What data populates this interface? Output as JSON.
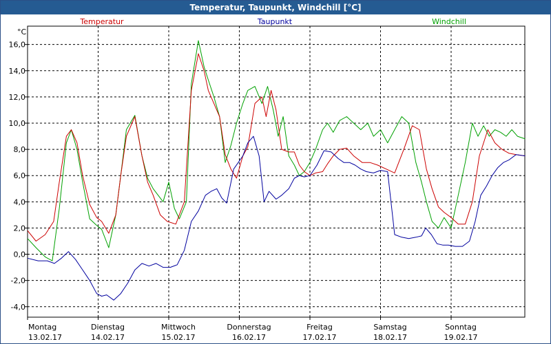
{
  "window": {
    "title": "Temperatur, Taupunkt, Windchill [°C]"
  },
  "chart_data": {
    "type": "line",
    "title": "Temperatur, Taupunkt, Windchill [°C]",
    "ylabel": "°C",
    "ylim": [
      -4.8,
      17.4
    ],
    "grid": true,
    "legend_placement": "top",
    "yticks": [
      16,
      14,
      12,
      10,
      8,
      6,
      4,
      2,
      0,
      -2,
      -4
    ],
    "ytick_labels": [
      "16,0",
      "14,0",
      "12,0",
      "10,0",
      "8,0",
      "6,0",
      "4,0",
      "2,0",
      "0,0",
      "-2,0",
      "-4,0"
    ],
    "xlim": [
      0,
      7.05
    ],
    "xticks": [
      0,
      1,
      2,
      3,
      4,
      5,
      6
    ],
    "day_labels": [
      "Montag",
      "Dienstag",
      "Mittwoch",
      "Donnerstag",
      "Freitag",
      "Samstag",
      "Sonntag"
    ],
    "date_labels": [
      "13.02.17",
      "14.02.17",
      "15.02.17",
      "16.02.17",
      "17.02.17",
      "18.02.17",
      "19.02.17"
    ],
    "series": [
      {
        "name": "Temperatur",
        "color": "#cc0000",
        "x": [
          0,
          0.12,
          0.25,
          0.37,
          0.45,
          0.55,
          0.62,
          0.7,
          0.78,
          0.88,
          0.98,
          1.05,
          1.15,
          1.25,
          1.32,
          1.4,
          1.52,
          1.62,
          1.7,
          1.78,
          1.88,
          1.98,
          2.1,
          2.22,
          2.32,
          2.42,
          2.5,
          2.56,
          2.64,
          2.72,
          2.8,
          2.88,
          2.96,
          3.05,
          3.12,
          3.22,
          3.32,
          3.38,
          3.45,
          3.52,
          3.6,
          3.7,
          3.78,
          3.85,
          3.92,
          4.0,
          4.08,
          4.18,
          4.25,
          4.33,
          4.42,
          4.52,
          4.62,
          4.74,
          4.85,
          4.96,
          5.08,
          5.2,
          5.33,
          5.45,
          5.55,
          5.65,
          5.73,
          5.82,
          5.9,
          6.0,
          6.1,
          6.2,
          6.3,
          6.4,
          6.52,
          6.62,
          6.72,
          6.82,
          6.92,
          7.05
        ],
        "values": [
          1.8,
          1.0,
          1.5,
          2.5,
          5.5,
          9.0,
          9.5,
          8.5,
          6.0,
          3.8,
          2.8,
          2.5,
          1.6,
          3.0,
          6.0,
          9.0,
          10.5,
          7.5,
          5.5,
          4.5,
          3.0,
          2.5,
          2.3,
          4.0,
          12.5,
          15.3,
          14.0,
          12.5,
          11.5,
          10.5,
          7.6,
          6.5,
          5.8,
          7.5,
          8.2,
          11.5,
          12.0,
          10.5,
          12.5,
          11.0,
          8.0,
          7.8,
          7.8,
          6.8,
          6.3,
          6.0,
          6.2,
          6.3,
          6.9,
          7.5,
          8.0,
          8.1,
          7.5,
          7.0,
          7.0,
          6.8,
          6.5,
          6.2,
          8.0,
          9.8,
          9.5,
          6.5,
          5.0,
          3.6,
          3.2,
          2.8,
          2.3,
          2.3,
          4.0,
          7.5,
          9.5,
          8.5,
          8.0,
          7.7,
          7.6,
          7.5
        ]
      },
      {
        "name": "Taupunkt",
        "color": "#00009e",
        "x": [
          0,
          0.15,
          0.28,
          0.38,
          0.48,
          0.58,
          0.68,
          0.78,
          0.88,
          0.98,
          1.05,
          1.12,
          1.22,
          1.32,
          1.42,
          1.52,
          1.62,
          1.72,
          1.82,
          1.92,
          2.02,
          2.12,
          2.22,
          2.32,
          2.42,
          2.52,
          2.6,
          2.68,
          2.75,
          2.82,
          2.92,
          3.05,
          3.12,
          3.2,
          3.28,
          3.35,
          3.42,
          3.52,
          3.6,
          3.7,
          3.78,
          3.85,
          3.92,
          4.0,
          4.1,
          4.2,
          4.3,
          4.4,
          4.48,
          4.56,
          4.64,
          4.72,
          4.8,
          4.9,
          5.0,
          5.1,
          5.2,
          5.3,
          5.4,
          5.5,
          5.58,
          5.64,
          5.72,
          5.8,
          5.88,
          5.96,
          6.06,
          6.16,
          6.26,
          6.34,
          6.42,
          6.5,
          6.58,
          6.66,
          6.74,
          6.82,
          6.92,
          7.05
        ],
        "values": [
          -0.3,
          -0.5,
          -0.5,
          -0.7,
          -0.3,
          0.2,
          -0.4,
          -1.2,
          -2.0,
          -3.0,
          -3.2,
          -3.1,
          -3.5,
          -3.0,
          -2.2,
          -1.2,
          -0.7,
          -0.9,
          -0.7,
          -1.0,
          -1.0,
          -0.8,
          0.3,
          2.5,
          3.3,
          4.5,
          4.8,
          5.0,
          4.3,
          3.9,
          6.5,
          7.5,
          8.5,
          9.0,
          7.5,
          4.0,
          4.8,
          4.2,
          4.5,
          5.0,
          5.8,
          6.0,
          5.9,
          6.0,
          6.8,
          7.9,
          7.8,
          7.3,
          7.0,
          7.0,
          6.8,
          6.5,
          6.3,
          6.2,
          6.4,
          6.3,
          1.5,
          1.3,
          1.2,
          1.3,
          1.4,
          2.0,
          1.5,
          0.8,
          0.7,
          0.7,
          0.6,
          0.6,
          1.0,
          2.5,
          4.5,
          5.2,
          6.0,
          6.6,
          7.0,
          7.2,
          7.6,
          7.5
        ]
      },
      {
        "name": "Windchill",
        "color": "#00a000",
        "x": [
          0,
          0.12,
          0.25,
          0.35,
          0.45,
          0.55,
          0.62,
          0.7,
          0.78,
          0.88,
          0.98,
          1.05,
          1.15,
          1.25,
          1.32,
          1.4,
          1.52,
          1.62,
          1.7,
          1.78,
          1.85,
          1.92,
          2.0,
          2.08,
          2.15,
          2.25,
          2.32,
          2.42,
          2.5,
          2.56,
          2.64,
          2.72,
          2.8,
          2.88,
          2.96,
          3.05,
          3.12,
          3.22,
          3.32,
          3.4,
          3.48,
          3.55,
          3.62,
          3.7,
          3.78,
          3.85,
          3.92,
          4.0,
          4.08,
          4.18,
          4.25,
          4.33,
          4.42,
          4.52,
          4.62,
          4.72,
          4.82,
          4.9,
          5.0,
          5.1,
          5.2,
          5.3,
          5.4,
          5.5,
          5.58,
          5.65,
          5.73,
          5.82,
          5.9,
          6.0,
          6.1,
          6.2,
          6.3,
          6.38,
          6.46,
          6.54,
          6.62,
          6.7,
          6.78,
          6.86,
          6.94,
          7.05
        ],
        "values": [
          1.2,
          0.5,
          -0.2,
          -0.5,
          3.5,
          8.5,
          9.5,
          8.0,
          5.5,
          2.7,
          2.2,
          1.9,
          0.5,
          3.0,
          6.0,
          9.5,
          10.6,
          7.5,
          5.8,
          5.0,
          4.5,
          4.0,
          5.5,
          3.5,
          2.7,
          4.0,
          13.0,
          16.3,
          14.3,
          13.3,
          12.0,
          10.5,
          7.0,
          8.3,
          10.0,
          11.5,
          12.5,
          12.8,
          11.5,
          12.8,
          11.0,
          9.0,
          10.5,
          7.5,
          6.8,
          6.0,
          6.3,
          7.0,
          8.0,
          9.5,
          10.0,
          9.3,
          10.2,
          10.5,
          10.0,
          9.5,
          10.0,
          9.0,
          9.5,
          8.5,
          9.5,
          10.5,
          10.0,
          7.0,
          5.5,
          4.0,
          2.5,
          2.0,
          2.8,
          2.0,
          4.5,
          7.0,
          10.0,
          9.0,
          9.8,
          9.0,
          9.5,
          9.3,
          9.0,
          9.5,
          9.0,
          8.8
        ]
      }
    ]
  }
}
